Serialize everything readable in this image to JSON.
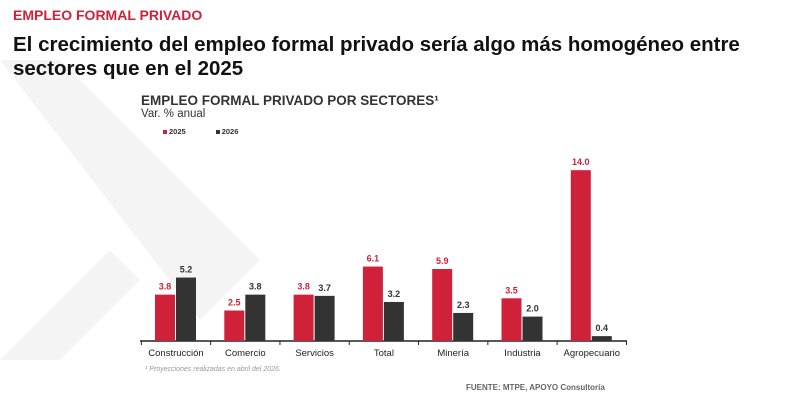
{
  "kicker": "EMPLEO FORMAL PRIVADO",
  "headline": "El crecimiento del empleo formal privado sería algo más homogéneo entre sectores que en el 2025",
  "footnote": "¹ Proyecciones realizadas en abril del 2026.",
  "source": "FUENTE: MTPE, APOYO Consultoría",
  "chart_data": {
    "type": "bar",
    "title": "EMPLEO FORMAL PRIVADO POR SECTORES¹",
    "subtitle": "Var. % anual",
    "categories": [
      "Construcción",
      "Comercio",
      "Servicios",
      "Total",
      "Minería",
      "Industria",
      "Agropecuario"
    ],
    "series": [
      {
        "name": "2025",
        "color": "#d0213a",
        "values": [
          3.8,
          2.5,
          3.8,
          6.1,
          5.9,
          3.5,
          14.0
        ]
      },
      {
        "name": "2026",
        "color": "#333333",
        "values": [
          5.2,
          3.8,
          3.7,
          3.2,
          2.3,
          2.0,
          0.4
        ]
      }
    ],
    "legend": "top-left",
    "grid": false
  }
}
